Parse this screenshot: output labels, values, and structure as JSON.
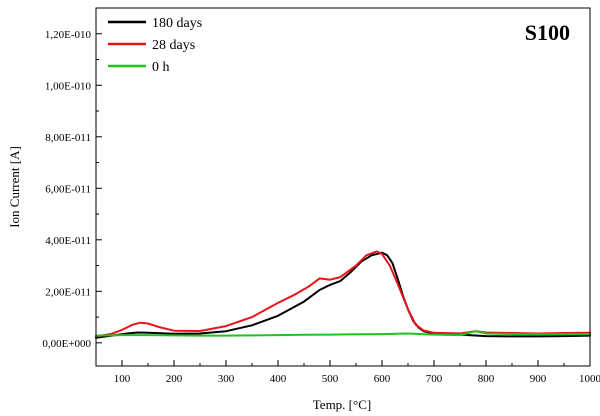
{
  "chart_data": {
    "type": "line",
    "title": "S100",
    "xlabel": "Temp. [°C]",
    "ylabel": "Ion Current [A]",
    "xlim": [
      50,
      1000
    ],
    "ylim": [
      -9e-12,
      1.3e-10
    ],
    "x_ticks": [
      100,
      200,
      300,
      400,
      500,
      600,
      700,
      800,
      900,
      1000
    ],
    "x_tick_labels": [
      "100",
      "200",
      "300",
      "400",
      "500",
      "600",
      "700",
      "800",
      "900",
      "1000"
    ],
    "y_ticks": [
      0,
      2e-11,
      4e-11,
      6e-11,
      8e-11,
      1e-10,
      1.2e-10
    ],
    "y_tick_labels": [
      "0,00E+000",
      "2,00E-011",
      "4,00E-011",
      "6,00E-011",
      "8,00E-011",
      "1,00E-010",
      "1,20E-010"
    ],
    "grid": false,
    "legend_position": "top-left",
    "series": [
      {
        "name": "180 days",
        "color": "#000000",
        "x": [
          50,
          80,
          110,
          130,
          150,
          200,
          250,
          300,
          350,
          400,
          450,
          480,
          500,
          520,
          540,
          560,
          580,
          600,
          610,
          620,
          630,
          640,
          650,
          660,
          670,
          680,
          700,
          750,
          800,
          850,
          900,
          950,
          1000
        ],
        "y": [
          2e-12,
          2.8e-12,
          3.6e-12,
          4e-12,
          3.9e-12,
          3.5e-12,
          3.6e-12,
          4.5e-12,
          6.8e-12,
          1.05e-11,
          1.6e-11,
          2.05e-11,
          2.25e-11,
          2.4e-11,
          2.75e-11,
          3.15e-11,
          3.4e-11,
          3.5e-11,
          3.4e-11,
          3.1e-11,
          2.5e-11,
          1.85e-11,
          1.3e-11,
          8.5e-12,
          6e-12,
          4.5e-12,
          3.5e-12,
          3.2e-12,
          2.6e-12,
          2.5e-12,
          2.5e-12,
          2.6e-12,
          2.8e-12
        ]
      },
      {
        "name": "28 days",
        "color": "#e8141b",
        "x": [
          50,
          80,
          100,
          120,
          135,
          150,
          170,
          200,
          250,
          300,
          350,
          400,
          430,
          460,
          480,
          500,
          520,
          550,
          570,
          590,
          600,
          615,
          630,
          650,
          665,
          680,
          700,
          750,
          780,
          800,
          850,
          900,
          950,
          1000
        ],
        "y": [
          2.5e-12,
          3.5e-12,
          5e-12,
          7e-12,
          7.8e-12,
          7.5e-12,
          6.2e-12,
          4.7e-12,
          4.6e-12,
          6.5e-12,
          1e-11,
          1.55e-11,
          1.85e-11,
          2.2e-11,
          2.5e-11,
          2.45e-11,
          2.55e-11,
          3e-11,
          3.4e-11,
          3.55e-11,
          3.45e-11,
          3e-11,
          2.3e-11,
          1.3e-11,
          7e-12,
          4.8e-12,
          3.9e-12,
          3.6e-12,
          4.5e-12,
          4e-12,
          3.8e-12,
          3.6e-12,
          3.8e-12,
          3.9e-12
        ]
      },
      {
        "name": "0 h",
        "color": "#1ec31e",
        "x": [
          50,
          100,
          150,
          200,
          250,
          300,
          350,
          400,
          450,
          500,
          550,
          600,
          650,
          700,
          750,
          770,
          780,
          800,
          850,
          900,
          950,
          1000
        ],
        "y": [
          2.8e-12,
          3e-12,
          3e-12,
          2.9e-12,
          2.8e-12,
          2.8e-12,
          2.9e-12,
          3e-12,
          3.1e-12,
          3.2e-12,
          3.3e-12,
          3.4e-12,
          3.6e-12,
          3.2e-12,
          3e-12,
          4e-12,
          4.5e-12,
          3.6e-12,
          3.4e-12,
          3.3e-12,
          3.3e-12,
          3.4e-12
        ]
      }
    ]
  }
}
